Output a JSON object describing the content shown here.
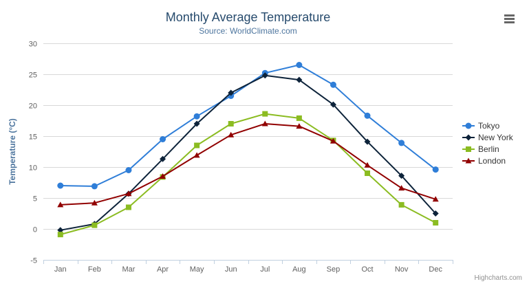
{
  "header": {
    "title": "Monthly Average Temperature",
    "subtitle": "Source: WorldClimate.com"
  },
  "credits": "Highcharts.com",
  "menu": {
    "icon": "hamburger-menu-icon"
  },
  "chart_data": {
    "type": "line",
    "title": "Monthly Average Temperature",
    "subtitle": "Source: WorldClimate.com",
    "categories": [
      "Jan",
      "Feb",
      "Mar",
      "Apr",
      "May",
      "Jun",
      "Jul",
      "Aug",
      "Sep",
      "Oct",
      "Nov",
      "Dec"
    ],
    "series": [
      {
        "name": "Tokyo",
        "color": "#2f7ed8",
        "marker": "circle",
        "values": [
          7.0,
          6.9,
          9.5,
          14.5,
          18.2,
          21.5,
          25.2,
          26.5,
          23.3,
          18.3,
          13.9,
          9.6
        ]
      },
      {
        "name": "New York",
        "color": "#0d233a",
        "marker": "diamond",
        "values": [
          -0.2,
          0.8,
          5.7,
          11.3,
          17.0,
          22.0,
          24.8,
          24.1,
          20.1,
          14.1,
          8.6,
          2.5
        ]
      },
      {
        "name": "Berlin",
        "color": "#8bbc21",
        "marker": "square",
        "values": [
          -0.9,
          0.6,
          3.5,
          8.4,
          13.5,
          17.0,
          18.6,
          17.9,
          14.3,
          9.0,
          3.9,
          1.0
        ]
      },
      {
        "name": "London",
        "color": "#910000",
        "marker": "triangle",
        "values": [
          3.9,
          4.2,
          5.7,
          8.5,
          11.9,
          15.2,
          17.0,
          16.6,
          14.2,
          10.3,
          6.6,
          4.8
        ]
      }
    ],
    "xlabel": "",
    "ylabel": "Temperature (°C)",
    "ylim": [
      -5,
      30
    ],
    "yTickInterval": 5,
    "yTicks": [
      -5,
      0,
      5,
      10,
      15,
      20,
      25,
      30
    ],
    "grid": true,
    "legend_position": "right",
    "colors": {
      "title": "#274b6d",
      "subtitle": "#4d759e",
      "axis_title": "#4d759e",
      "tick_label": "#606060",
      "gridline": "#d8d8d8",
      "axis_line": "#c0d0e0",
      "legend_text": "#333333",
      "credits": "#909090",
      "menu_icon": "#666666"
    }
  }
}
